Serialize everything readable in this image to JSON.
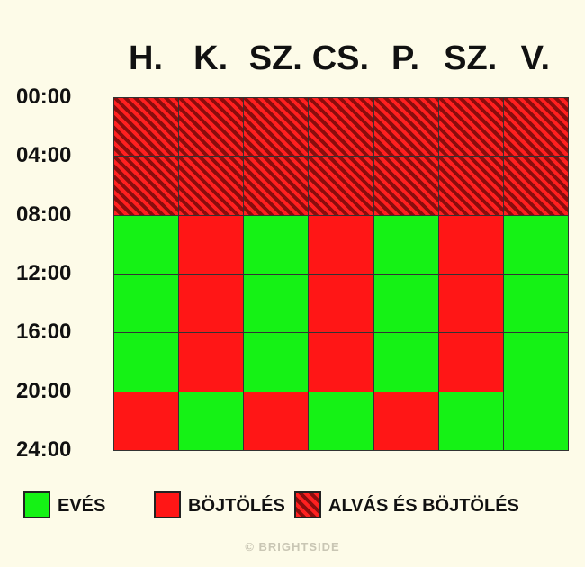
{
  "days": [
    "H.",
    "K.",
    "SZ.",
    "CS.",
    "P.",
    "SZ.",
    "V."
  ],
  "times": [
    "00:00",
    "04:00",
    "08:00",
    "12:00",
    "16:00",
    "20:00",
    "24:00"
  ],
  "schedule": [
    [
      "sleep",
      "sleep",
      "sleep",
      "sleep",
      "sleep",
      "sleep",
      "sleep"
    ],
    [
      "sleep",
      "sleep",
      "sleep",
      "sleep",
      "sleep",
      "sleep",
      "sleep"
    ],
    [
      "eat",
      "fast",
      "eat",
      "fast",
      "eat",
      "fast",
      "eat"
    ],
    [
      "eat",
      "fast",
      "eat",
      "fast",
      "eat",
      "fast",
      "eat"
    ],
    [
      "eat",
      "fast",
      "eat",
      "fast",
      "eat",
      "fast",
      "eat"
    ],
    [
      "fast",
      "eat",
      "fast",
      "eat",
      "fast",
      "eat",
      "eat"
    ]
  ],
  "legend": {
    "eat": "EVÉS",
    "fast": "BÖJTÖLÉS",
    "sleep": "ALVÁS ÉS BÖJTÖLÉS"
  },
  "colors": {
    "eat": "#15f215",
    "fast": "#ff1616",
    "sleep_dark": "#8a0d0d"
  },
  "footer": "© BRIGHTSIDE"
}
